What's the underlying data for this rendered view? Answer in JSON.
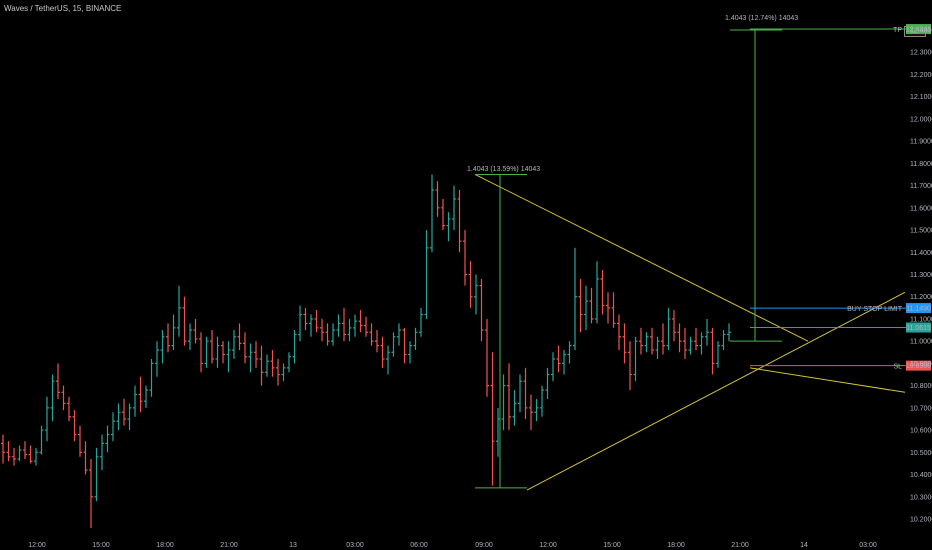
{
  "header": {
    "title": "Waves / TetherUS, 15, BINANCE",
    "currency": "USDT"
  },
  "chart_data": {
    "type": "ohlc",
    "ylim": [
      10.15,
      12.5
    ],
    "y_ticks": [
      "12.4000",
      "12.3000",
      "12.2000",
      "12.1000",
      "12.0000",
      "11.9000",
      "11.8000",
      "11.7000",
      "11.6000",
      "11.5000",
      "11.4000",
      "11.3000",
      "11.2000",
      "11.1000",
      "11.0000",
      "10.9000",
      "10.8000",
      "10.7000",
      "10.6000",
      "10.5000",
      "10.4000",
      "10.3000",
      "10.2000"
    ],
    "x_ticks": [
      "12:00",
      "15:00",
      "18:00",
      "21:00",
      "13",
      "03:00",
      "06:00",
      "09:00",
      "12:00",
      "15:00",
      "18:00",
      "21:00",
      "14",
      "03:00"
    ],
    "bars": [
      [
        10.54,
        10.58,
        10.45,
        10.5
      ],
      [
        10.5,
        10.55,
        10.46,
        10.48
      ],
      [
        10.48,
        10.52,
        10.44,
        10.47
      ],
      [
        10.47,
        10.53,
        10.46,
        10.51
      ],
      [
        10.51,
        10.55,
        10.47,
        10.49
      ],
      [
        10.49,
        10.53,
        10.45,
        10.46
      ],
      [
        10.46,
        10.52,
        10.44,
        10.5
      ],
      [
        10.5,
        10.62,
        10.49,
        10.6
      ],
      [
        10.6,
        10.75,
        10.55,
        10.7
      ],
      [
        10.7,
        10.85,
        10.64,
        10.82
      ],
      [
        10.82,
        10.9,
        10.74,
        10.77
      ],
      [
        10.77,
        10.8,
        10.69,
        10.72
      ],
      [
        10.72,
        10.75,
        10.64,
        10.66
      ],
      [
        10.66,
        10.69,
        10.55,
        10.58
      ],
      [
        10.58,
        10.62,
        10.48,
        10.5
      ],
      [
        10.5,
        10.55,
        10.4,
        10.42
      ],
      [
        10.42,
        10.47,
        10.16,
        10.3
      ],
      [
        10.3,
        10.52,
        10.28,
        10.48
      ],
      [
        10.48,
        10.58,
        10.42,
        10.54
      ],
      [
        10.54,
        10.62,
        10.5,
        10.58
      ],
      [
        10.58,
        10.68,
        10.55,
        10.64
      ],
      [
        10.64,
        10.72,
        10.6,
        10.68
      ],
      [
        10.68,
        10.74,
        10.62,
        10.65
      ],
      [
        10.65,
        10.72,
        10.6,
        10.7
      ],
      [
        10.7,
        10.8,
        10.66,
        10.76
      ],
      [
        10.76,
        10.84,
        10.68,
        10.73
      ],
      [
        10.73,
        10.8,
        10.7,
        10.78
      ],
      [
        10.78,
        10.92,
        10.75,
        10.9
      ],
      [
        10.9,
        11.0,
        10.84,
        10.96
      ],
      [
        10.96,
        11.05,
        10.9,
        11.02
      ],
      [
        11.02,
        11.08,
        10.95,
        10.98
      ],
      [
        10.98,
        11.12,
        10.96,
        11.06
      ],
      [
        11.06,
        11.25,
        11.02,
        11.15
      ],
      [
        11.15,
        11.2,
        10.98,
        11.0
      ],
      [
        11.0,
        11.08,
        10.96,
        11.05
      ],
      [
        11.05,
        11.1,
        10.99,
        11.01
      ],
      [
        11.01,
        11.04,
        10.86,
        10.9
      ],
      [
        10.9,
        11.02,
        10.88,
        11.0
      ],
      [
        11.0,
        11.05,
        10.9,
        10.92
      ],
      [
        10.92,
        11.02,
        10.88,
        10.98
      ],
      [
        10.98,
        11.0,
        10.9,
        10.94
      ],
      [
        10.94,
        11.0,
        10.86,
        10.96
      ],
      [
        10.96,
        11.05,
        10.92,
        11.02
      ],
      [
        11.02,
        11.08,
        10.96,
        10.99
      ],
      [
        10.99,
        11.04,
        10.9,
        10.93
      ],
      [
        10.93,
        10.99,
        10.86,
        10.95
      ],
      [
        10.95,
        11.0,
        10.88,
        10.92
      ],
      [
        10.92,
        10.98,
        10.8,
        10.86
      ],
      [
        10.86,
        10.94,
        10.84,
        10.91
      ],
      [
        10.91,
        10.96,
        10.84,
        10.88
      ],
      [
        10.88,
        10.92,
        10.8,
        10.85
      ],
      [
        10.85,
        10.9,
        10.82,
        10.88
      ],
      [
        10.88,
        10.95,
        10.86,
        10.93
      ],
      [
        10.93,
        11.05,
        10.9,
        11.03
      ],
      [
        11.03,
        11.16,
        11.0,
        11.12
      ],
      [
        11.12,
        11.15,
        11.05,
        11.08
      ],
      [
        11.08,
        11.12,
        11.02,
        11.1
      ],
      [
        11.1,
        11.14,
        11.04,
        11.06
      ],
      [
        11.06,
        11.1,
        11.0,
        11.04
      ],
      [
        11.04,
        11.08,
        10.98,
        11.0
      ],
      [
        11.0,
        11.08,
        10.98,
        11.05
      ],
      [
        11.05,
        11.12,
        11.02,
        11.08
      ],
      [
        11.08,
        11.15,
        11.0,
        11.03
      ],
      [
        11.03,
        11.1,
        11.0,
        11.06
      ],
      [
        11.06,
        11.12,
        11.02,
        11.09
      ],
      [
        11.09,
        11.14,
        11.04,
        11.07
      ],
      [
        11.07,
        11.11,
        11.02,
        11.04
      ],
      [
        11.04,
        11.08,
        10.98,
        11.0
      ],
      [
        11.0,
        11.05,
        10.95,
        10.98
      ],
      [
        10.98,
        11.02,
        10.88,
        10.92
      ],
      [
        10.92,
        10.98,
        10.85,
        10.95
      ],
      [
        10.95,
        11.04,
        10.93,
        11.02
      ],
      [
        11.02,
        11.08,
        10.98,
        11.05
      ],
      [
        11.05,
        11.06,
        10.9,
        10.94
      ],
      [
        10.94,
        11.0,
        10.9,
        10.98
      ],
      [
        10.98,
        11.06,
        10.96,
        11.04
      ],
      [
        11.04,
        11.15,
        11.02,
        11.12
      ],
      [
        11.12,
        11.5,
        11.1,
        11.42
      ],
      [
        11.42,
        11.75,
        11.4,
        11.68
      ],
      [
        11.68,
        11.72,
        11.56,
        11.6
      ],
      [
        11.6,
        11.64,
        11.5,
        11.52
      ],
      [
        11.52,
        11.58,
        11.45,
        11.55
      ],
      [
        11.55,
        11.7,
        11.5,
        11.64
      ],
      [
        11.64,
        11.68,
        11.4,
        11.45
      ],
      [
        11.45,
        11.5,
        11.25,
        11.3
      ],
      [
        11.3,
        11.36,
        11.15,
        11.2
      ],
      [
        11.2,
        11.3,
        11.12,
        11.25
      ],
      [
        11.25,
        11.28,
        11.0,
        11.05
      ],
      [
        11.05,
        11.1,
        10.75,
        10.8
      ],
      [
        10.8,
        10.95,
        10.35,
        10.55
      ],
      [
        10.55,
        10.7,
        10.48,
        10.65
      ],
      [
        10.65,
        10.85,
        10.6,
        10.8
      ],
      [
        10.8,
        10.9,
        10.6,
        10.66
      ],
      [
        10.66,
        10.78,
        10.62,
        10.72
      ],
      [
        10.72,
        10.85,
        10.68,
        10.82
      ],
      [
        10.82,
        10.88,
        10.65,
        10.7
      ],
      [
        10.7,
        10.76,
        10.6,
        10.68
      ],
      [
        10.68,
        10.74,
        10.64,
        10.7
      ],
      [
        10.7,
        10.8,
        10.66,
        10.78
      ],
      [
        10.78,
        10.88,
        10.74,
        10.85
      ],
      [
        10.85,
        10.95,
        10.82,
        10.92
      ],
      [
        10.92,
        10.98,
        10.86,
        10.9
      ],
      [
        10.9,
        10.96,
        10.85,
        10.94
      ],
      [
        10.94,
        11.0,
        10.9,
        10.98
      ],
      [
        10.98,
        11.42,
        10.96,
        11.2
      ],
      [
        11.2,
        11.28,
        11.04,
        11.12
      ],
      [
        11.12,
        11.25,
        11.05,
        11.18
      ],
      [
        11.18,
        11.24,
        11.08,
        11.1
      ],
      [
        11.1,
        11.36,
        11.08,
        11.28
      ],
      [
        11.28,
        11.32,
        11.12,
        11.16
      ],
      [
        11.16,
        11.22,
        11.08,
        11.15
      ],
      [
        11.15,
        11.22,
        11.06,
        11.08
      ],
      [
        11.08,
        11.12,
        10.96,
        11.02
      ],
      [
        11.02,
        11.08,
        10.9,
        10.95
      ],
      [
        10.95,
        11.0,
        10.78,
        10.85
      ],
      [
        10.85,
        11.02,
        10.82,
        11.0
      ],
      [
        11.0,
        11.06,
        10.94,
        10.98
      ],
      [
        10.98,
        11.04,
        10.95,
        11.02
      ],
      [
        11.02,
        11.06,
        10.94,
        10.96
      ],
      [
        10.96,
        11.02,
        10.92,
        11.0
      ],
      [
        11.0,
        11.08,
        10.94,
        10.98
      ],
      [
        10.98,
        11.15,
        10.96,
        11.1
      ],
      [
        11.1,
        11.14,
        11.0,
        11.04
      ],
      [
        11.04,
        11.08,
        10.95,
        11.0
      ],
      [
        11.0,
        11.06,
        10.92,
        10.96
      ],
      [
        10.96,
        11.02,
        10.94,
        11.0
      ],
      [
        11.0,
        11.06,
        10.96,
        10.98
      ],
      [
        10.98,
        11.04,
        10.94,
        11.02
      ],
      [
        11.02,
        11.1,
        10.98,
        11.04
      ],
      [
        11.04,
        11.06,
        10.85,
        10.9
      ],
      [
        10.9,
        11.0,
        10.88,
        10.98
      ],
      [
        10.98,
        11.05,
        10.96,
        11.03
      ],
      [
        11.03,
        11.08,
        11.0,
        11.04
      ]
    ],
    "levels": [
      {
        "label": "TP",
        "price_label": "12.4043",
        "value": 12.4043,
        "color": "#4caf50"
      },
      {
        "label": "BUY STOP LIMIT",
        "price_label": "11.1490",
        "value": 11.149,
        "color": "#2196f3"
      },
      {
        "label": "",
        "price_label": "11.0615",
        "value": 11.0615,
        "color": "#26a69a"
      },
      {
        "label": "SL",
        "price_label": "10.8900",
        "value": 10.89,
        "color": "#ef5350"
      }
    ],
    "measure_labels": [
      "1.4043 (13.59%) 14043",
      "1.4043 (12.74%) 14043"
    ],
    "current_price": 11.0615,
    "colors": {
      "up": "#26a69a",
      "down": "#ef5350",
      "trend": "#d4c13a",
      "measure": "#4caf50"
    }
  }
}
